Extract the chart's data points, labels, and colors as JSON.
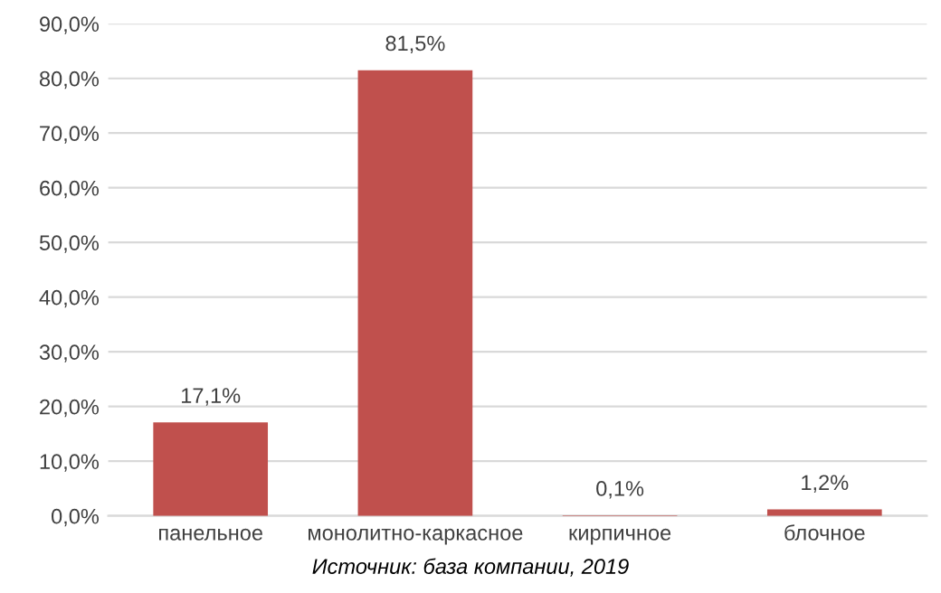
{
  "chart_data": {
    "type": "bar",
    "categories": [
      "панельное",
      "монолитно-каркасное",
      "кирпичное",
      "блочное"
    ],
    "values": [
      17.1,
      81.5,
      0.1,
      1.2
    ],
    "value_labels": [
      "17,1%",
      "81,5%",
      "0,1%",
      "1,2%"
    ],
    "color": "#c0504d",
    "ylim": [
      0,
      90
    ],
    "yticks": [
      {
        "value": 0,
        "label": "0,0%"
      },
      {
        "value": 10,
        "label": "10,0%"
      },
      {
        "value": 20,
        "label": "20,0%"
      },
      {
        "value": 30,
        "label": "30,0%"
      },
      {
        "value": 40,
        "label": "40,0%"
      },
      {
        "value": 50,
        "label": "50,0%"
      },
      {
        "value": 60,
        "label": "60,0%"
      },
      {
        "value": 70,
        "label": "70,0%"
      },
      {
        "value": 80,
        "label": "80,0%"
      },
      {
        "value": 90,
        "label": "90,0%"
      }
    ],
    "grid": "y",
    "annotations": [
      "Источник: база компании, 2019"
    ]
  }
}
